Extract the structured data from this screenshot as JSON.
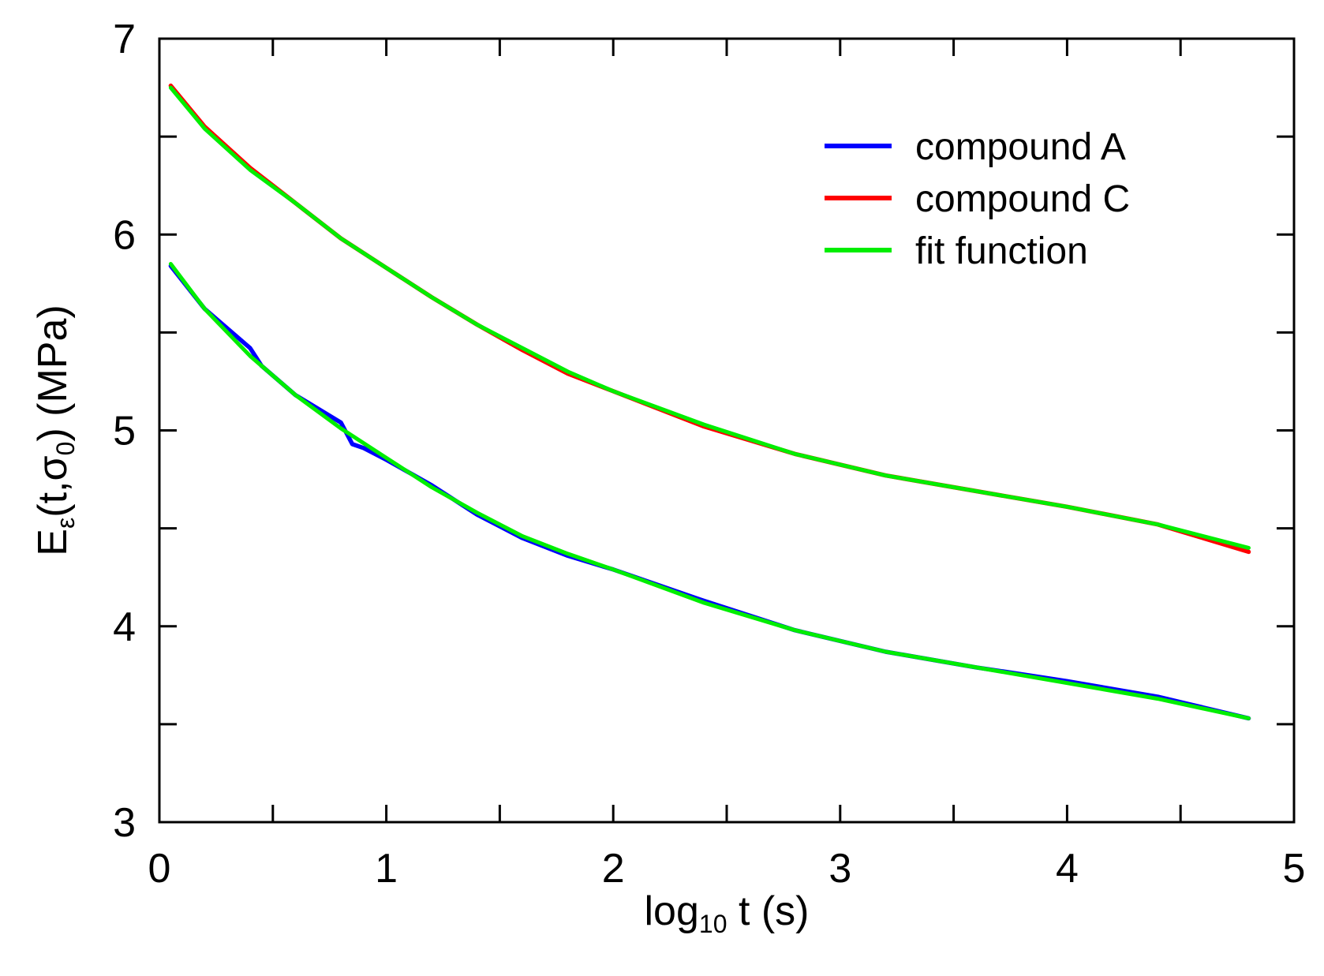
{
  "chart_data": {
    "type": "line",
    "xlabel": {
      "base": "log",
      "subscript": "10",
      "rest": " t  (s)"
    },
    "ylabel": {
      "main": "E",
      "sub1": "ε",
      "mid": "(t,σ",
      "sub2": "0",
      "end": ")  (MPa)"
    },
    "xlim": [
      0,
      5
    ],
    "ylim": [
      3,
      7
    ],
    "x_ticks": [
      0,
      1,
      2,
      3,
      4,
      5
    ],
    "y_ticks": [
      3,
      4,
      5,
      6,
      7
    ],
    "x_tick_labels": [
      "0",
      "1",
      "2",
      "3",
      "4",
      "5"
    ],
    "y_tick_labels": [
      "3",
      "4",
      "5",
      "6",
      "7"
    ],
    "grid": false,
    "legend_position": "top-right",
    "series": [
      {
        "name": "compound A",
        "color": "#0000ff",
        "x": [
          0.05,
          0.2,
          0.4,
          0.45,
          0.6,
          0.8,
          0.85,
          0.9,
          1.0,
          1.2,
          1.4,
          1.6,
          1.8,
          2.0,
          2.4,
          2.8,
          3.2,
          3.6,
          4.0,
          4.4,
          4.8
        ],
        "y": [
          5.84,
          5.62,
          5.42,
          5.33,
          5.18,
          5.04,
          4.93,
          4.91,
          4.85,
          4.72,
          4.57,
          4.45,
          4.36,
          4.29,
          4.13,
          3.98,
          3.87,
          3.79,
          3.72,
          3.64,
          3.53
        ]
      },
      {
        "name": "compound C",
        "color": "#ff0000",
        "x": [
          0.05,
          0.2,
          0.4,
          0.6,
          0.8,
          1.0,
          1.2,
          1.4,
          1.6,
          1.8,
          2.0,
          2.4,
          2.8,
          3.2,
          3.6,
          4.0,
          4.4,
          4.8
        ],
        "y": [
          6.76,
          6.55,
          6.34,
          6.16,
          5.98,
          5.83,
          5.68,
          5.54,
          5.41,
          5.29,
          5.2,
          5.02,
          4.88,
          4.77,
          4.69,
          4.61,
          4.52,
          4.38
        ]
      },
      {
        "name": "fit function",
        "color": "#00ee00",
        "x": [
          0.05,
          0.2,
          0.4,
          0.6,
          0.8,
          1.0,
          1.2,
          1.4,
          1.6,
          1.8,
          2.0,
          2.4,
          2.8,
          3.2,
          3.6,
          4.0,
          4.4,
          4.8
        ],
        "y": [
          5.85,
          5.62,
          5.38,
          5.18,
          5.01,
          4.86,
          4.71,
          4.58,
          4.46,
          4.37,
          4.29,
          4.12,
          3.98,
          3.87,
          3.79,
          3.71,
          3.63,
          3.53
        ]
      },
      {
        "name": "",
        "color": "#00ee00",
        "x": [
          0.05,
          0.2,
          0.4,
          0.6,
          0.8,
          1.0,
          1.2,
          1.4,
          1.6,
          1.8,
          2.0,
          2.4,
          2.8,
          3.2,
          3.6,
          4.0,
          4.4,
          4.8
        ],
        "y": [
          6.75,
          6.54,
          6.33,
          6.16,
          5.98,
          5.83,
          5.68,
          5.54,
          5.42,
          5.3,
          5.2,
          5.03,
          4.88,
          4.77,
          4.69,
          4.61,
          4.52,
          4.4
        ]
      }
    ],
    "legend": [
      {
        "label": "compound A",
        "color": "#0000ff"
      },
      {
        "label": "compound C",
        "color": "#ff0000"
      },
      {
        "label": "fit function",
        "color": "#00ee00"
      }
    ]
  }
}
